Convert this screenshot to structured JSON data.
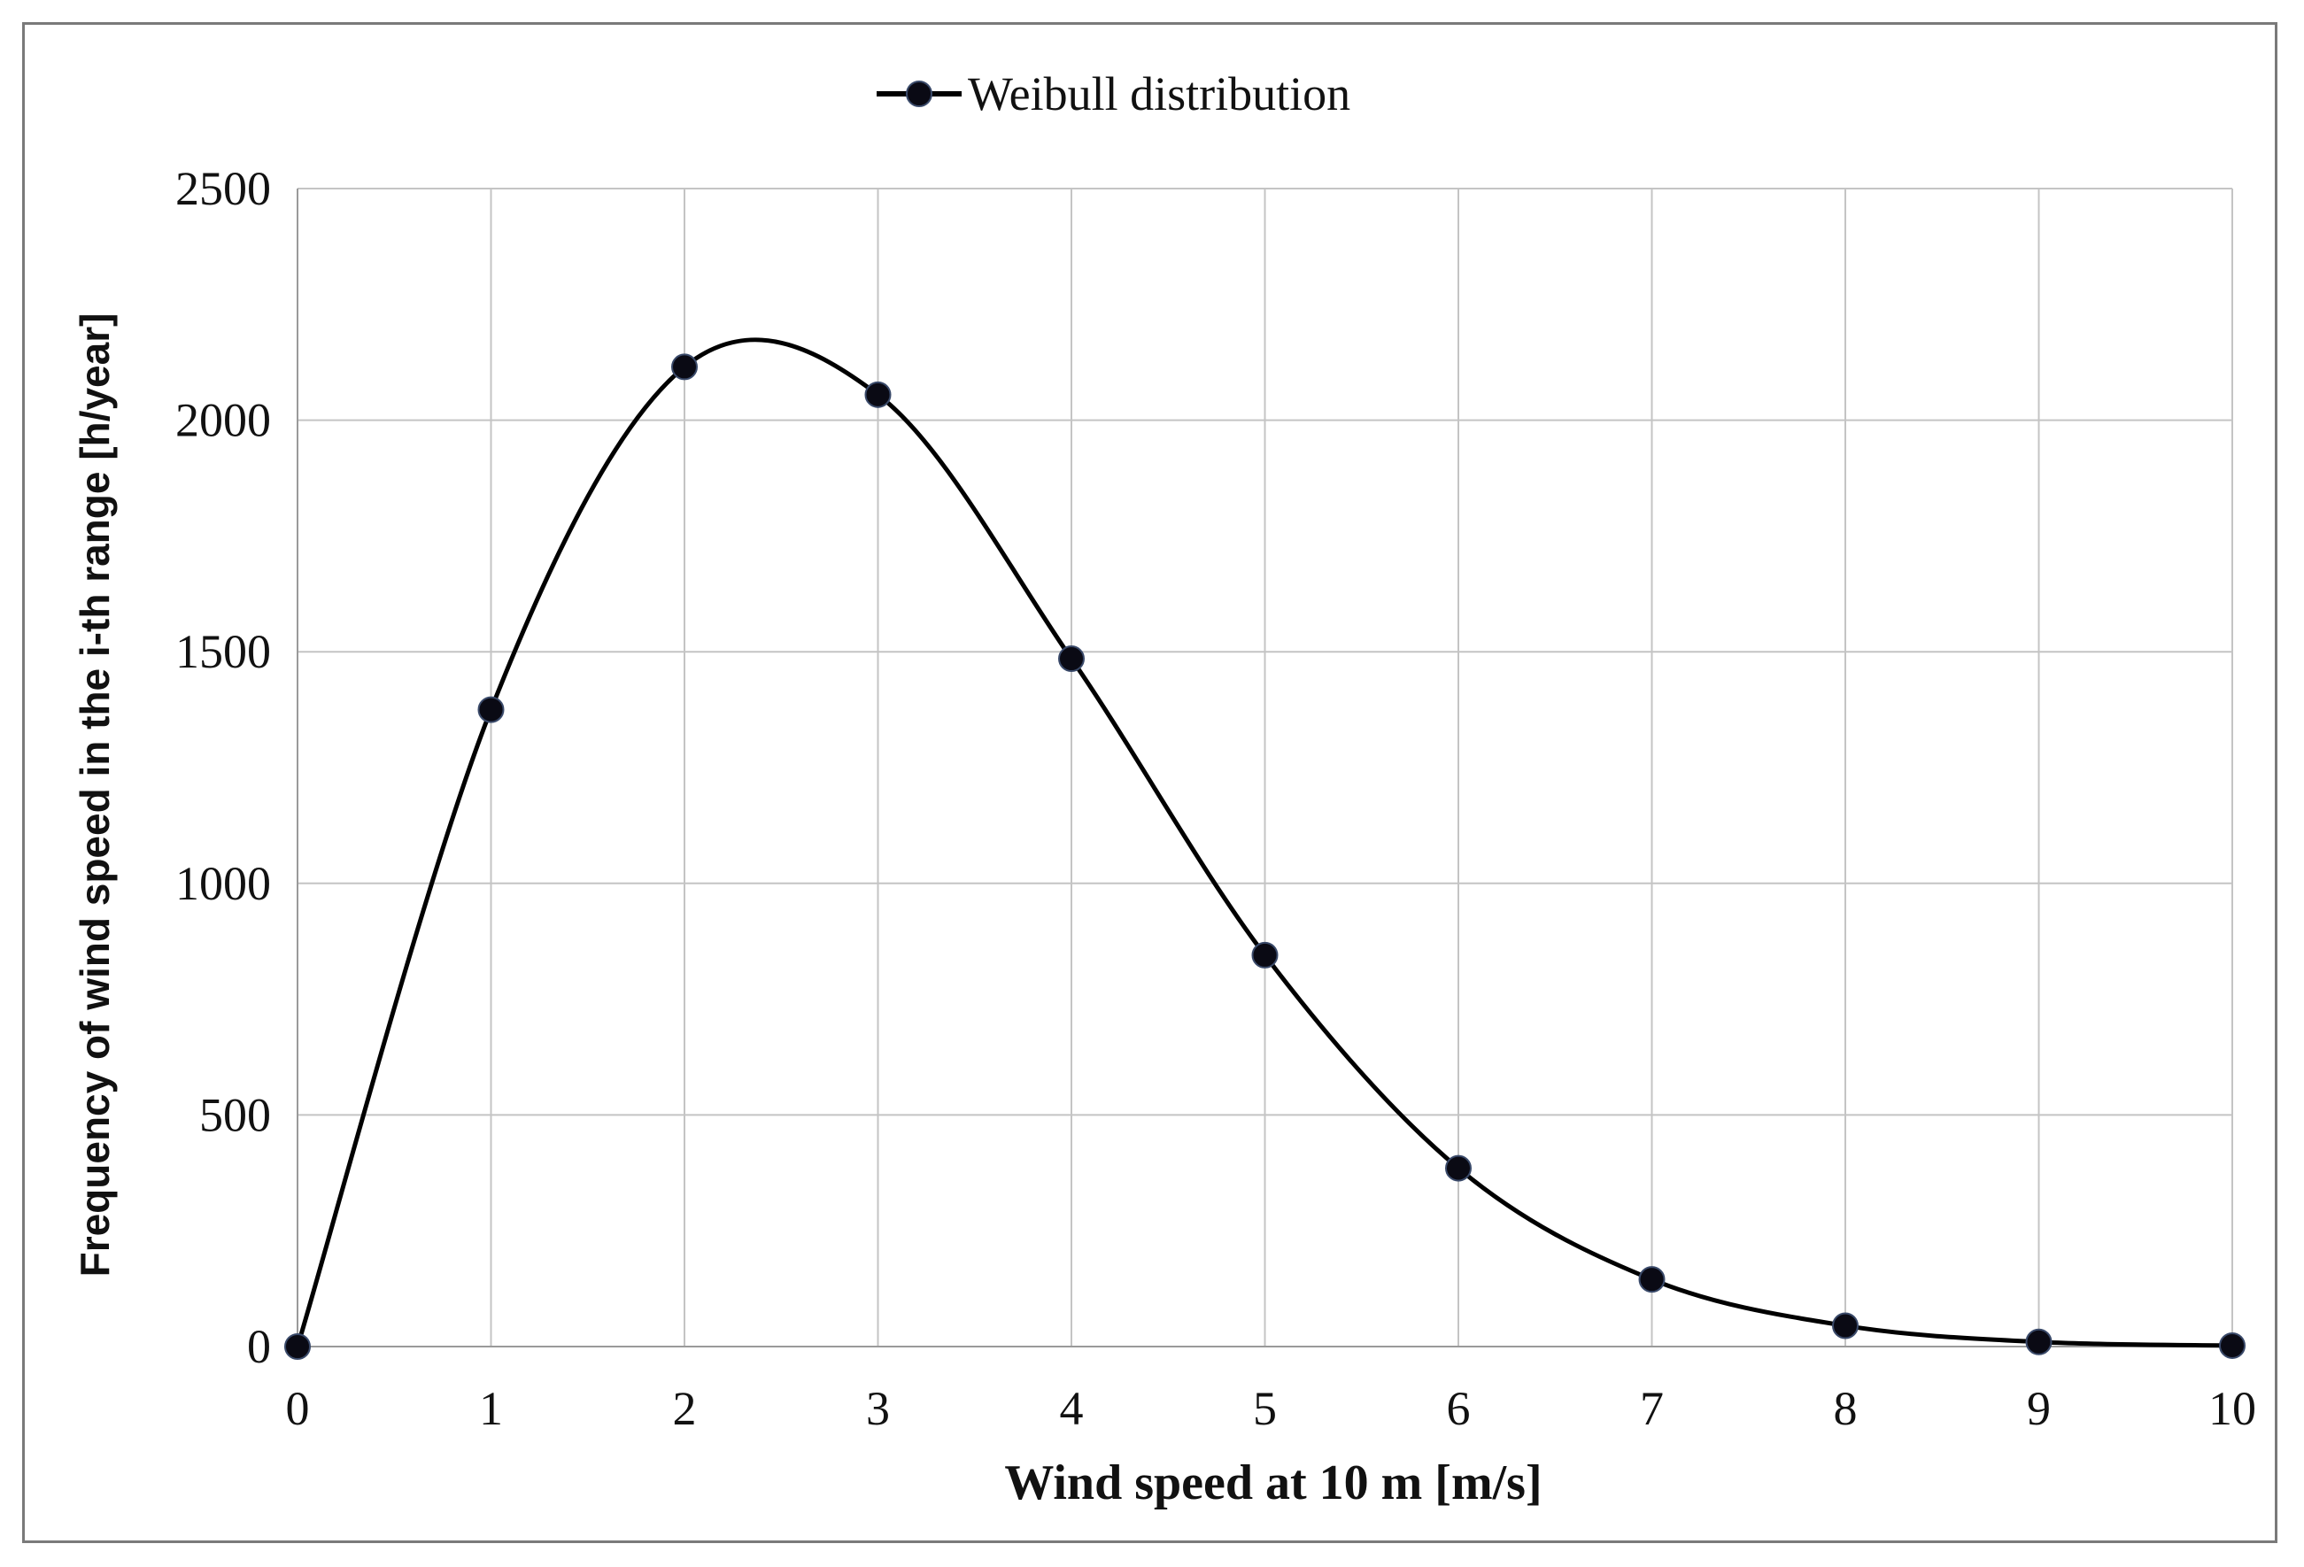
{
  "chart_data": {
    "type": "line",
    "title": "",
    "xlabel": "Wind speed at 10 m [m/s]",
    "ylabel": "Frequency of wind speed in the i-th range [h/year]",
    "xlim": [
      0,
      10
    ],
    "ylim": [
      0,
      2500
    ],
    "xticks": [
      "0",
      "1",
      "2",
      "3",
      "4",
      "5",
      "6",
      "7",
      "8",
      "9",
      "10"
    ],
    "yticks": [
      "0",
      "500",
      "1000",
      "1500",
      "2000",
      "2500"
    ],
    "grid": true,
    "legend_position": "top-center",
    "series": [
      {
        "name": "Weibull distribution",
        "color": "#000000",
        "marker": "circle",
        "smooth": true,
        "x": [
          0,
          1,
          2,
          3,
          4,
          5,
          6,
          7,
          8,
          9,
          10
        ],
        "values": [
          0,
          1375,
          2115,
          2055,
          1485,
          845,
          385,
          145,
          45,
          10,
          2
        ]
      }
    ]
  }
}
